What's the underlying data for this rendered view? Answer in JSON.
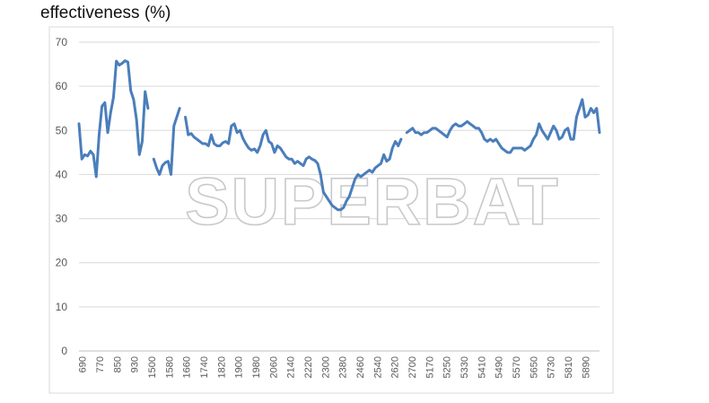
{
  "chart_data": {
    "type": "line",
    "title": "effectiveness (%)",
    "watermark": "SUPERBAT",
    "ylim": [
      0,
      70
    ],
    "yticks": [
      0,
      10,
      20,
      30,
      40,
      50,
      60,
      70
    ],
    "grid": true,
    "x_tick_labels": [
      "690",
      "770",
      "850",
      "930",
      "1500",
      "1580",
      "1660",
      "1740",
      "1820",
      "1900",
      "1980",
      "2060",
      "2140",
      "2220",
      "2300",
      "2380",
      "2460",
      "2540",
      "2620",
      "2700",
      "5170",
      "5250",
      "5330",
      "5410",
      "5490",
      "5570",
      "5650",
      "5730",
      "5810",
      "5890"
    ],
    "line_color": "#4a7ebb",
    "series": [
      {
        "segments": [
          [
            51.5,
            43.5,
            44.5,
            44.2,
            45.3,
            44.5,
            39.5,
            49,
            55.5,
            56.3,
            49.5,
            54,
            57.5,
            65.7,
            64.8,
            65.2,
            65.8,
            65.5,
            59,
            57,
            52.5,
            44.5,
            47.5,
            58.8,
            55
          ],
          [
            43.5,
            41.5,
            40,
            42,
            42.7,
            43,
            40,
            51,
            53,
            55
          ],
          [
            53,
            49,
            49.3,
            48.5,
            48,
            47.5,
            47,
            47,
            46.5,
            49,
            47,
            46.5,
            46.5,
            47.2,
            47.5,
            47,
            51,
            51.5,
            49.5,
            50,
            48.2,
            47,
            46,
            45.5,
            45.8,
            45,
            46.5,
            49,
            50,
            47.5,
            47,
            45,
            46.5,
            46,
            45,
            44,
            43.5,
            43.5,
            42.5,
            43,
            42.5,
            42,
            43.5,
            44,
            43.5,
            43.2,
            42.5,
            40,
            36,
            35,
            34,
            33,
            32.5,
            32,
            32,
            32.5,
            34,
            35,
            37,
            39,
            40,
            39.5,
            40,
            40.5,
            41,
            40.5,
            41.5,
            42,
            42.5,
            44.5,
            43,
            43.5,
            46,
            47.5,
            46.5,
            48
          ],
          [
            49.5,
            50,
            50.5,
            49.5,
            49.5,
            49,
            49.5,
            49.5,
            50,
            50.5,
            50.5,
            50,
            49.5,
            49,
            48.5,
            50,
            51,
            51.5,
            51,
            51,
            51.5,
            52,
            51.5,
            51,
            50.5,
            50.5,
            49.5,
            48,
            47.5,
            48,
            47.5,
            48,
            47,
            46,
            45.5,
            45,
            45,
            46,
            46,
            46,
            46,
            45.5,
            46,
            46.5,
            48,
            49,
            51.5,
            50,
            49,
            48,
            49.5,
            51,
            50,
            48,
            48.5,
            50,
            50.5,
            48,
            48,
            53,
            55,
            57,
            53,
            53.5,
            55,
            54,
            55,
            49.5
          ]
        ]
      }
    ]
  }
}
